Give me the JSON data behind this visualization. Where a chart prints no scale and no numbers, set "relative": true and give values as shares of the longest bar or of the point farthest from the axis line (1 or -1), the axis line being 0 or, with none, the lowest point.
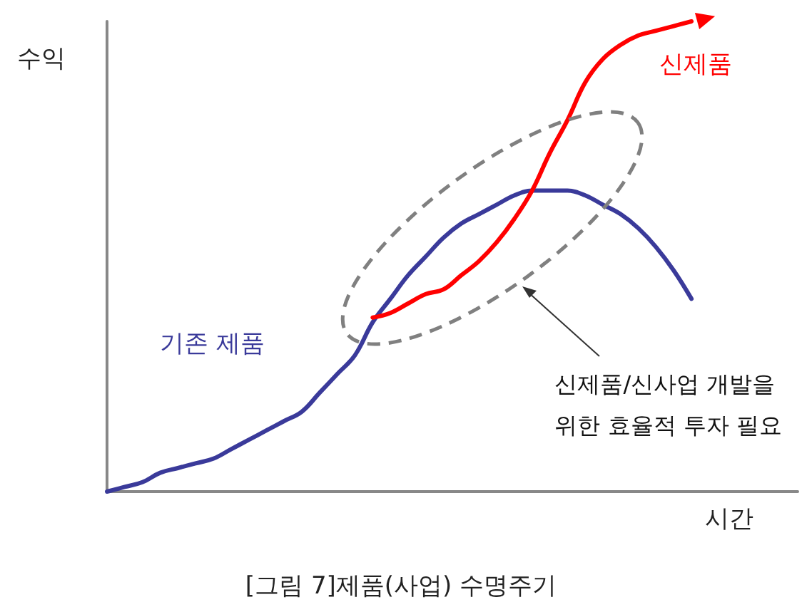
{
  "chart_data": {
    "type": "line",
    "title": "[그림 7]제품(사업) 수명주기",
    "xlabel": "시간",
    "ylabel": "수익",
    "relative": true,
    "legend": "top right",
    "grid": false,
    "marker": "none",
    "categories": [
      null,
      null,
      null,
      null,
      null,
      null,
      null,
      null,
      null,
      null,
      null,
      null,
      null,
      null,
      null,
      null,
      null,
      null,
      null,
      null,
      null,
      null,
      null,
      null,
      null,
      null,
      null,
      null,
      null,
      null,
      null,
      null,
      null,
      null,
      null,
      null,
      null,
      null,
      null,
      null
    ],
    "series": [
      {
        "name": "기존 제품",
        "color": "#3a3a9a",
        "values": [
          0,
          0.01,
          0.02,
          0.04,
          0.05,
          0.06,
          0.07,
          0.09,
          0.11,
          0.13,
          0.15,
          0.17,
          0.21,
          0.25,
          0.29,
          0.36,
          0.41,
          0.46,
          0.5,
          0.54,
          0.57,
          0.59,
          0.61,
          0.63,
          0.64,
          0.64,
          0.64,
          0.63,
          0.61,
          0.59,
          0.56,
          0.52,
          0.47,
          0.41,
          null,
          null,
          null,
          null,
          null,
          null
        ]
      },
      {
        "name": "신제품",
        "color": "#ff0000",
        "values": [
          null,
          null,
          null,
          null,
          null,
          null,
          null,
          null,
          null,
          null,
          null,
          null,
          null,
          null,
          null,
          0.37,
          0.38,
          0.4,
          0.42,
          0.43,
          0.46,
          0.49,
          0.53,
          0.58,
          0.64,
          0.72,
          0.79,
          0.87,
          0.92,
          0.95,
          0.97,
          0.98,
          0.99,
          1,
          null,
          null,
          null,
          null,
          null,
          null
        ]
      }
    ],
    "annotations": [
      "신제품/신사업 개발을\n위한 효율적 투자 필요"
    ]
  }
}
